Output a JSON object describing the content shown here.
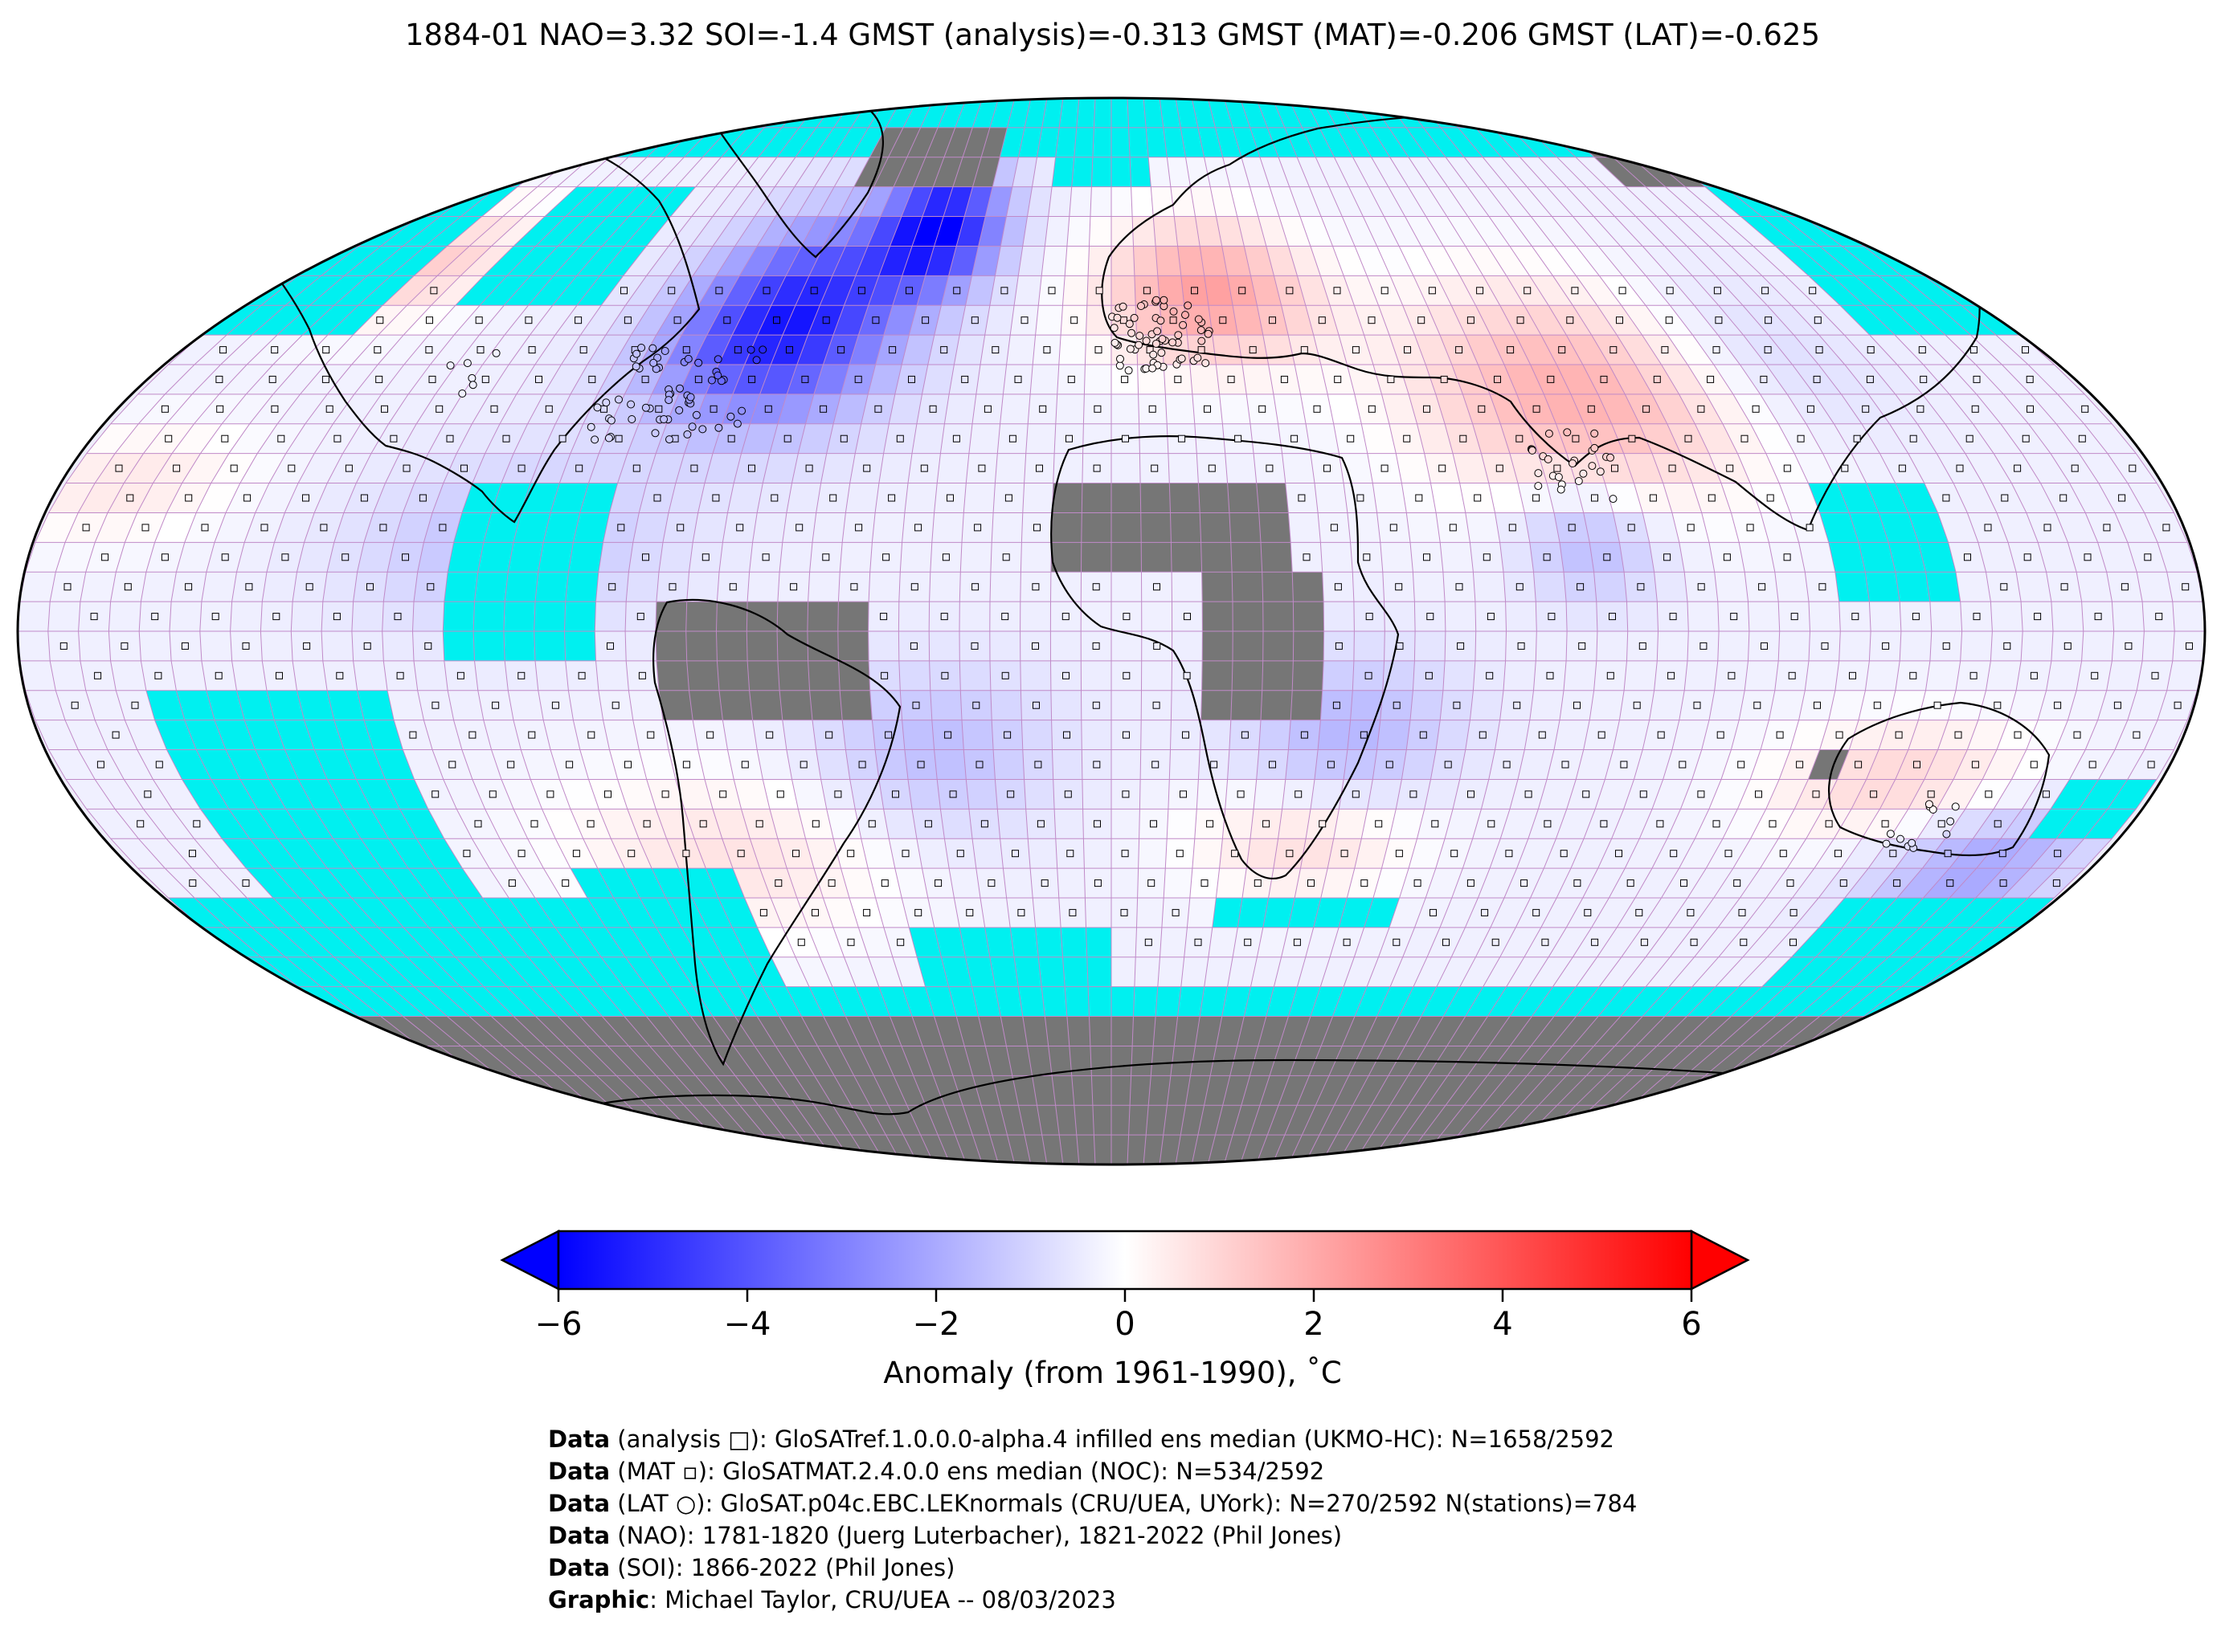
{
  "title": "1884-01 NAO=3.32 SOI=-1.4 GMST (analysis)=-0.313 GMST (MAT)=-0.206 GMST (LAT)=-0.625",
  "colors": {
    "missing_ocean": "#00f0f0",
    "no_data_land": "#767676",
    "grid_lines": "#c08ac8",
    "outline": "#000000",
    "cold_end": "#0000ff",
    "neutral": "#ffffff",
    "warm_end": "#ff0000"
  },
  "colorbar": {
    "min": -6,
    "max": 6,
    "extend": "both",
    "colormap": "bwr",
    "ticks": [
      "−6",
      "−4",
      "−2",
      "0",
      "2",
      "4",
      "6"
    ],
    "label": "Anomaly (from 1961-1990), ˚C"
  },
  "map": {
    "projection": "Robinson",
    "grid_spacing_deg": 5,
    "features": [
      "coastlines",
      "country-borders",
      "station-markers"
    ]
  },
  "credits": [
    {
      "key": "Data",
      "text": " (analysis □): GloSATref.1.0.0.0-alpha.4 infilled ens median (UKMO-HC): N=1658/2592"
    },
    {
      "key": "Data",
      "text": " (MAT ▫): GloSATMAT.2.4.0.0 ens median (NOC): N=534/2592"
    },
    {
      "key": "Data",
      "text": " (LAT ○): GloSAT.p04c.EBC.LEKnormals (CRU/UEA, UYork): N=270/2592 N(stations)=784"
    },
    {
      "key": "Data",
      "text": " (NAO): 1781-1820 (Juerg Luterbacher), 1821-2022 (Phil Jones)"
    },
    {
      "key": "Data",
      "text": " (SOI): 1866-2022 (Phil Jones)"
    },
    {
      "key": "Graphic",
      "text": ": Michael Taylor, CRU/UEA -- 08/03/2023"
    }
  ]
}
